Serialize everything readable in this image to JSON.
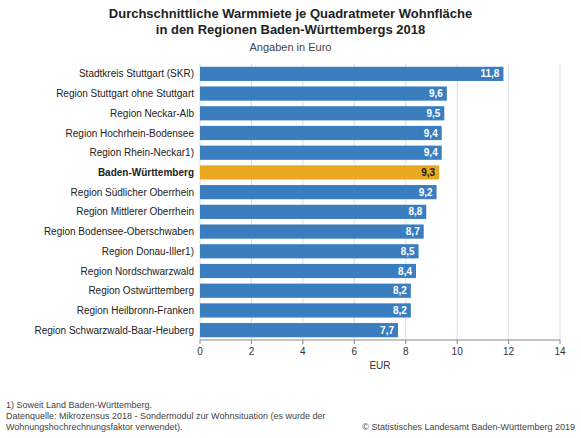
{
  "chart_data": {
    "type": "bar",
    "orientation": "horizontal",
    "title": "Durchschnittliche Warmmiete je Quadratmeter Wohnfläche\nin den Regionen Baden-Württembergs 2018",
    "subtitle": "Angaben in Euro",
    "categories": [
      "Stadtkreis Stuttgart (SKR)",
      "Region Stuttgart ohne Stuttgart",
      "Region Neckar-Alb",
      "Region Hochrhein-Bodensee",
      "Region Rhein-Neckar1)",
      "Baden-Württemberg",
      "Region Südlicher Oberrhein",
      "Region Mittlerer Oberrhein",
      "Region Bodensee-Oberschwaben",
      "Region Donau-Iller1)",
      "Region Nordschwarzwald",
      "Region Ostwürttemberg",
      "Region Heilbronn-Franken",
      "Region Schwarzwald-Baar-Heuberg"
    ],
    "values": [
      11.8,
      9.6,
      9.5,
      9.4,
      9.4,
      9.3,
      9.2,
      8.8,
      8.7,
      8.5,
      8.4,
      8.2,
      8.2,
      7.7
    ],
    "value_labels": [
      "11,8",
      "9,6",
      "9,5",
      "9,4",
      "9,4",
      "9,3",
      "9,2",
      "8,8",
      "8,7",
      "8,5",
      "8,4",
      "8,2",
      "8,2",
      "7,7"
    ],
    "data_labels": true,
    "colors": [
      "#3A7EC0",
      "#3A7EC0",
      "#3A7EC0",
      "#3A7EC0",
      "#3A7EC0",
      "#E8A820",
      "#3A7EC0",
      "#3A7EC0",
      "#3A7EC0",
      "#3A7EC0",
      "#3A7EC0",
      "#3A7EC0",
      "#3A7EC0",
      "#3A7EC0"
    ],
    "xlabel": "EUR",
    "xlim": [
      0,
      14
    ],
    "xticks": [
      0,
      2,
      4,
      6,
      8,
      10,
      12,
      14
    ],
    "grid": true,
    "footnotes": [
      "1) Soweit Land Baden-Württemberg.",
      "Datenquelle: Mikrozensus 2018 - Sondermodul zur Wohnsituation (es wurde der",
      "Wohnungshochrechnungsfaktor verwendet)."
    ],
    "copyright": "© Statistisches Landesamt Baden-Württemberg 2019"
  }
}
